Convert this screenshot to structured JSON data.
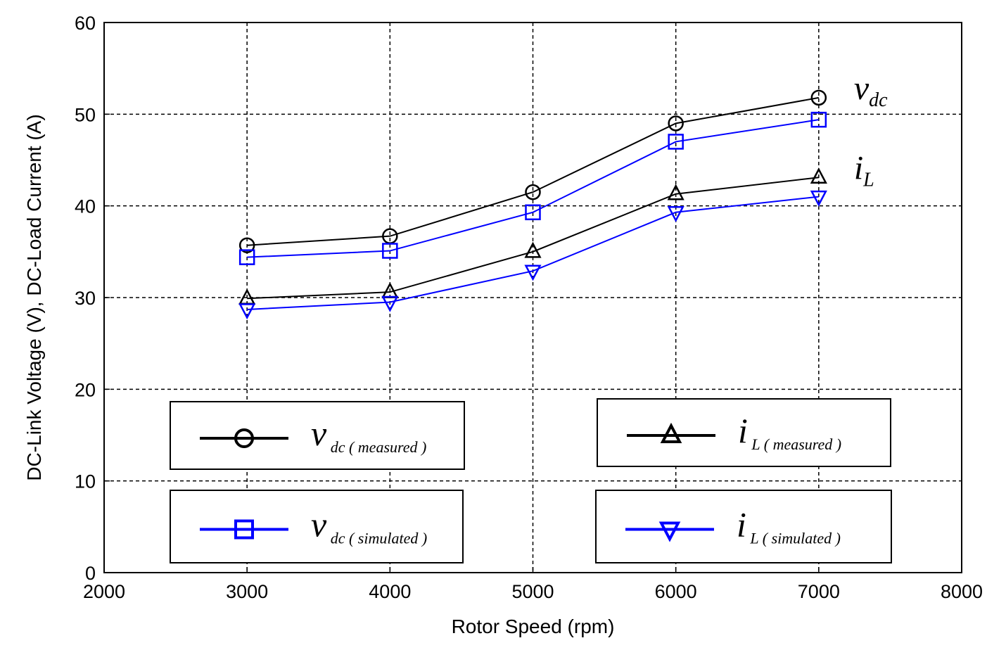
{
  "chart_data": {
    "type": "line",
    "xlabel": "Rotor Speed (rpm)",
    "ylabel": "DC-Link Voltage (V), DC-Load Current (A)",
    "xlim": [
      2000,
      8000
    ],
    "ylim": [
      0,
      60
    ],
    "xticks": [
      "2000",
      "3000",
      "4000",
      "5000",
      "6000",
      "7000",
      "8000"
    ],
    "yticks": [
      "0",
      "10",
      "20",
      "30",
      "40",
      "50",
      "60"
    ],
    "grid": true,
    "x": [
      3000,
      4000,
      5000,
      6000,
      7000
    ],
    "series": [
      {
        "name": "v_dc(measured)",
        "marker": "circle",
        "color": "#000000",
        "values": [
          35.7,
          36.7,
          41.5,
          49.0,
          51.8
        ]
      },
      {
        "name": "v_dc(simulated)",
        "marker": "square",
        "color": "#0000ff",
        "values": [
          34.4,
          35.1,
          39.3,
          47.0,
          49.4
        ]
      },
      {
        "name": "i_L(measured)",
        "marker": "triangle-up",
        "color": "#000000",
        "values": [
          29.9,
          30.6,
          35.0,
          41.3,
          43.1
        ]
      },
      {
        "name": "i_L(simulated)",
        "marker": "triangle-down",
        "color": "#0000ff",
        "values": [
          28.7,
          29.5,
          32.9,
          39.3,
          41.0
        ]
      }
    ],
    "annotations": [
      {
        "main": "v",
        "sub": "dc",
        "near_series": 0
      },
      {
        "main": "i",
        "sub": "L",
        "near_series": 2
      }
    ],
    "legend": [
      {
        "main": "v",
        "sub": "dc ( measured )",
        "series": 0,
        "placement": "lower-left-top"
      },
      {
        "main": "i",
        "sub": "L ( measured )",
        "series": 2,
        "placement": "lower-right-top"
      },
      {
        "main": "v",
        "sub": "dc ( simulated )",
        "series": 1,
        "placement": "lower-left-bottom"
      },
      {
        "main": "i",
        "sub": "L ( simulated )",
        "series": 3,
        "placement": "lower-right-bottom"
      }
    ]
  }
}
